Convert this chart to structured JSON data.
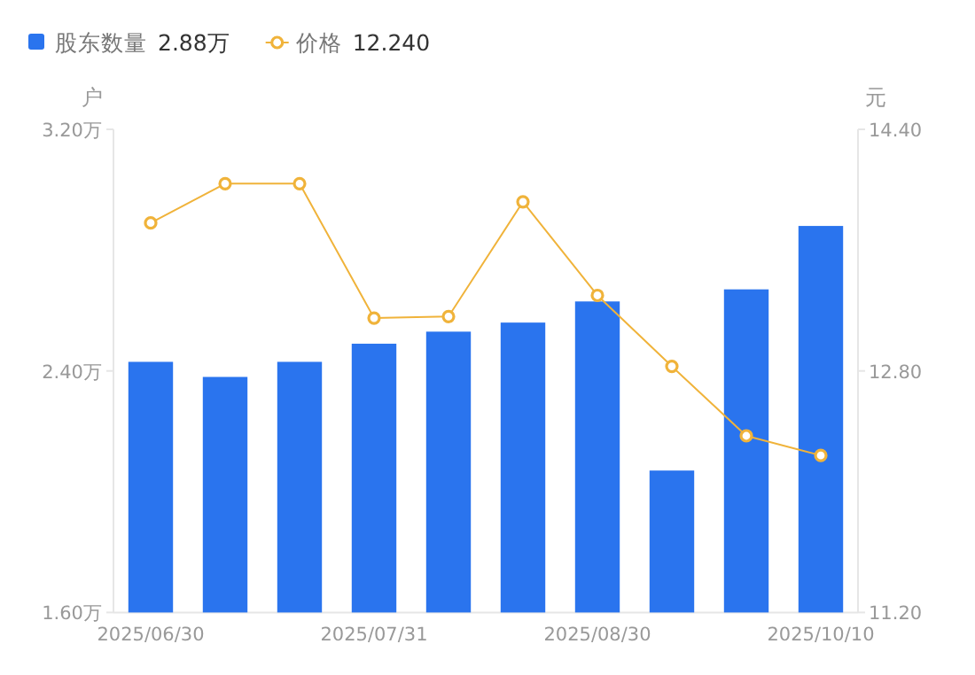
{
  "chart_data": {
    "type": "bar",
    "categories": [
      "2025/06/30",
      null,
      null,
      "2025/07/31",
      null,
      null,
      "2025/08/30",
      null,
      null,
      "2025/10/10"
    ],
    "series": [
      {
        "name": "股东数量",
        "color": "#2a74ee",
        "values": [
          2.43,
          2.38,
          2.43,
          2.49,
          2.53,
          2.56,
          2.63,
          2.07,
          2.67,
          2.88
        ]
      },
      {
        "name": "价格",
        "type": "line",
        "axis": "y2",
        "color": "#f0b33a",
        "marker": "circle",
        "values": [
          13.78,
          14.04,
          14.04,
          13.15,
          13.16,
          13.92,
          13.3,
          12.83,
          12.37,
          12.24
        ]
      }
    ],
    "annotations": [
      "2.88万",
      "12.240"
    ],
    "ylabel": "户",
    "y2label": "元",
    "ylim": [
      1.6,
      3.2
    ],
    "yticks": [
      {
        "value": 1.6,
        "label": "1.60万"
      },
      {
        "value": 2.4,
        "label": "2.40万"
      },
      {
        "value": 3.2,
        "label": "3.20万"
      }
    ],
    "y2lim": [
      11.2,
      14.4
    ],
    "y2ticks": [
      {
        "value": 11.2,
        "label": "11.20"
      },
      {
        "value": 12.8,
        "label": "12.80"
      },
      {
        "value": 14.4,
        "label": "14.40"
      }
    ],
    "legend": "top left"
  }
}
